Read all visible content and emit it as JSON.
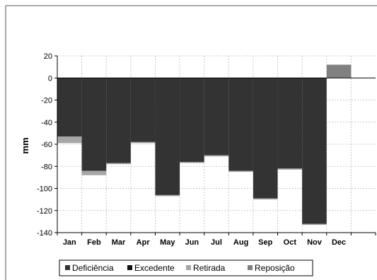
{
  "chart_data": {
    "type": "bar",
    "title": "",
    "xlabel": "",
    "ylabel": "mm",
    "ylim": [
      -140,
      20
    ],
    "yticks": [
      -140,
      -120,
      -100,
      -80,
      -60,
      -40,
      -20,
      0,
      20
    ],
    "grid": true,
    "legend_position": "bottom",
    "categories": [
      "Jan",
      "Feb",
      "Mar",
      "Apr",
      "May",
      "Jun",
      "Jul",
      "Aug",
      "Sep",
      "Oct",
      "Nov",
      "Dec"
    ],
    "series": [
      {
        "name": "Deficiência",
        "color": "#333333",
        "values": [
          -53,
          -84,
          -77,
          -58,
          -106,
          -76,
          -70,
          -84,
          -109,
          -82,
          -132,
          0
        ]
      },
      {
        "name": "Excedente",
        "color": "#111111",
        "values": [
          0,
          0,
          0,
          0,
          0,
          0,
          0,
          0,
          0,
          0,
          0,
          0
        ]
      },
      {
        "name": "Retirada",
        "color": "#a6a6a6",
        "values": [
          -6,
          -4,
          -1,
          -1,
          -1,
          -1,
          -1,
          -1,
          -1,
          -1,
          -1,
          0
        ]
      },
      {
        "name": "Reposição",
        "color": "#808080",
        "values": [
          0,
          0,
          0,
          0,
          0,
          0,
          0,
          0,
          0,
          0,
          0,
          12
        ]
      }
    ]
  },
  "colors": {
    "gridline": "#c8c8c8",
    "axis": "#000000",
    "frame": "#555555"
  }
}
